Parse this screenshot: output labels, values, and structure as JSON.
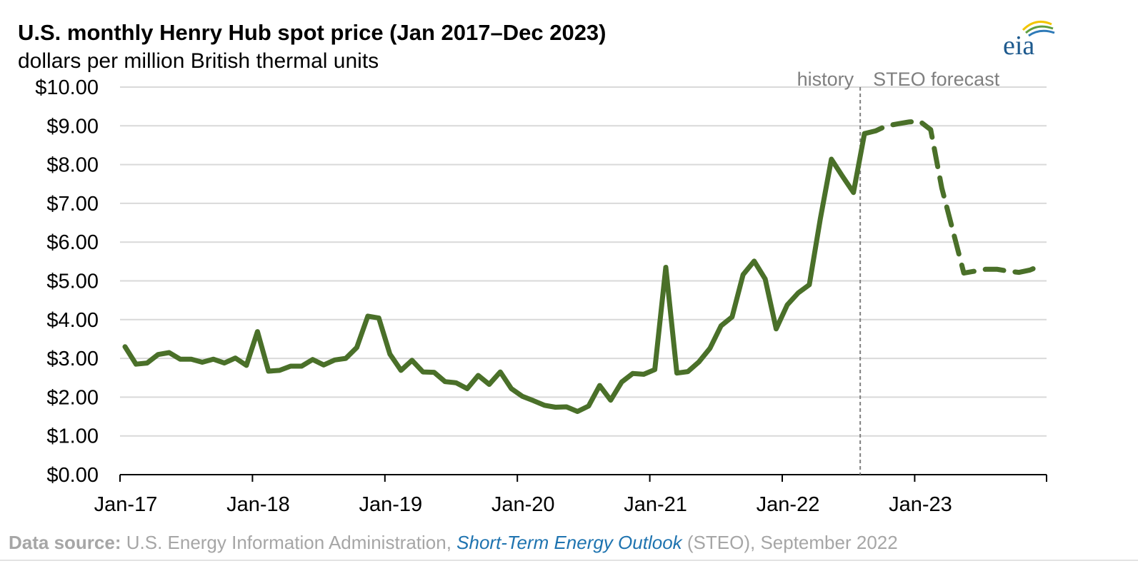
{
  "header": {
    "title": "U.S. monthly Henry Hub spot price (Jan 2017–Dec 2023)",
    "subtitle": "dollars per million British thermal units",
    "logo_text": "eia"
  },
  "footer": {
    "source_label": "Data source:",
    "source_text": " U.S. Energy Information Administration, ",
    "report_name": "Short-Term Energy Outlook",
    "source_suffix": " (STEO), September 2022"
  },
  "colors": {
    "series_line": "#4a7029",
    "grid": "#d9d9d9",
    "divider": "#7f7f7f",
    "annotation": "#7f7f7f",
    "link": "#1f74b0",
    "logo_swoosh_yellow": "#f2c500",
    "logo_swoosh_green": "#5f9e3f",
    "logo_swoosh_blue": "#2e7ab8",
    "logo_text": "#1e5a8e"
  },
  "chart_data": {
    "type": "line",
    "x_start": "2017-01",
    "x_end": "2023-12",
    "ylim": [
      0,
      10
    ],
    "grid": true,
    "yticks": [
      "$0.00",
      "$1.00",
      "$2.00",
      "$3.00",
      "$4.00",
      "$5.00",
      "$6.00",
      "$7.00",
      "$8.00",
      "$9.00",
      "$10.00"
    ],
    "xticks": [
      "Jan-17",
      "Jan-18",
      "Jan-19",
      "Jan-20",
      "Jan-21",
      "Jan-22",
      "Jan-23"
    ],
    "annotations": {
      "history": "history",
      "forecast": "STEO forecast",
      "divider_at": "2022-08"
    },
    "series": [
      {
        "style": "solid",
        "x": [
          "2017-01",
          "2017-02",
          "2017-03",
          "2017-04",
          "2017-05",
          "2017-06",
          "2017-07",
          "2017-08",
          "2017-09",
          "2017-10",
          "2017-11",
          "2017-12",
          "2018-01",
          "2018-02",
          "2018-03",
          "2018-04",
          "2018-05",
          "2018-06",
          "2018-07",
          "2018-08",
          "2018-09",
          "2018-10",
          "2018-11",
          "2018-12",
          "2019-01",
          "2019-02",
          "2019-03",
          "2019-04",
          "2019-05",
          "2019-06",
          "2019-07",
          "2019-08",
          "2019-09",
          "2019-10",
          "2019-11",
          "2019-12",
          "2020-01",
          "2020-02",
          "2020-03",
          "2020-04",
          "2020-05",
          "2020-06",
          "2020-07",
          "2020-08",
          "2020-09",
          "2020-10",
          "2020-11",
          "2020-12",
          "2021-01",
          "2021-02",
          "2021-03",
          "2021-04",
          "2021-05",
          "2021-06",
          "2021-07",
          "2021-08",
          "2021-09",
          "2021-10",
          "2021-11",
          "2021-12",
          "2022-01",
          "2022-02",
          "2022-03",
          "2022-04",
          "2022-05",
          "2022-06",
          "2022-07",
          "2022-08"
        ],
        "values": [
          3.3,
          2.85,
          2.88,
          3.1,
          3.15,
          2.98,
          2.98,
          2.9,
          2.98,
          2.88,
          3.01,
          2.82,
          3.69,
          2.67,
          2.69,
          2.8,
          2.8,
          2.97,
          2.83,
          2.96,
          3.0,
          3.28,
          4.09,
          4.04,
          3.11,
          2.69,
          2.95,
          2.65,
          2.64,
          2.4,
          2.37,
          2.22,
          2.56,
          2.33,
          2.65,
          2.22,
          2.02,
          1.91,
          1.79,
          1.74,
          1.75,
          1.63,
          1.77,
          2.3,
          1.92,
          2.39,
          2.61,
          2.59,
          2.71,
          5.35,
          2.62,
          2.66,
          2.91,
          3.26,
          3.84,
          4.07,
          5.16,
          5.51,
          5.05,
          3.76,
          4.38,
          4.69,
          4.9,
          6.6,
          8.14,
          7.7,
          7.28,
          8.8
        ]
      },
      {
        "style": "dashed",
        "x": [
          "2022-08",
          "2022-09",
          "2022-10",
          "2022-11",
          "2022-12",
          "2023-01",
          "2023-02",
          "2023-03",
          "2023-04",
          "2023-05",
          "2023-06",
          "2023-07",
          "2023-08",
          "2023-09",
          "2023-10",
          "2023-11",
          "2023-12"
        ],
        "values": [
          8.8,
          8.87,
          9.0,
          9.05,
          9.1,
          9.12,
          8.9,
          7.4,
          6.3,
          5.2,
          5.25,
          5.3,
          5.3,
          5.25,
          5.22,
          5.28,
          5.4
        ]
      }
    ]
  }
}
